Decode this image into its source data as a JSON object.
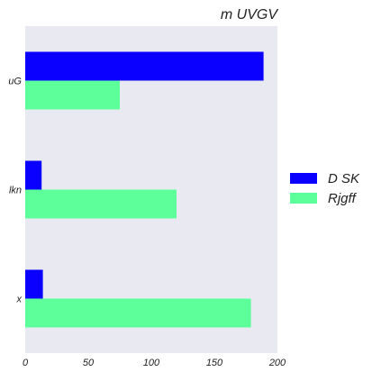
{
  "chart_data": {
    "type": "bar",
    "orientation": "horizontal",
    "title": "m UVGV",
    "categories": [
      "uG",
      "lkn",
      "x"
    ],
    "series": [
      {
        "name": "D SK",
        "color": "#0a00ff",
        "values": [
          189,
          13,
          14
        ]
      },
      {
        "name": "Rjgff",
        "color": "#5dff9a",
        "values": [
          75,
          120,
          179
        ]
      }
    ],
    "xlim": [
      0,
      200
    ],
    "xticks": [
      0,
      50,
      100,
      150,
      200
    ],
    "xlabel": "",
    "ylabel": "",
    "grid": false,
    "plot_background": "#e9e9f2",
    "legend_position": "right"
  }
}
